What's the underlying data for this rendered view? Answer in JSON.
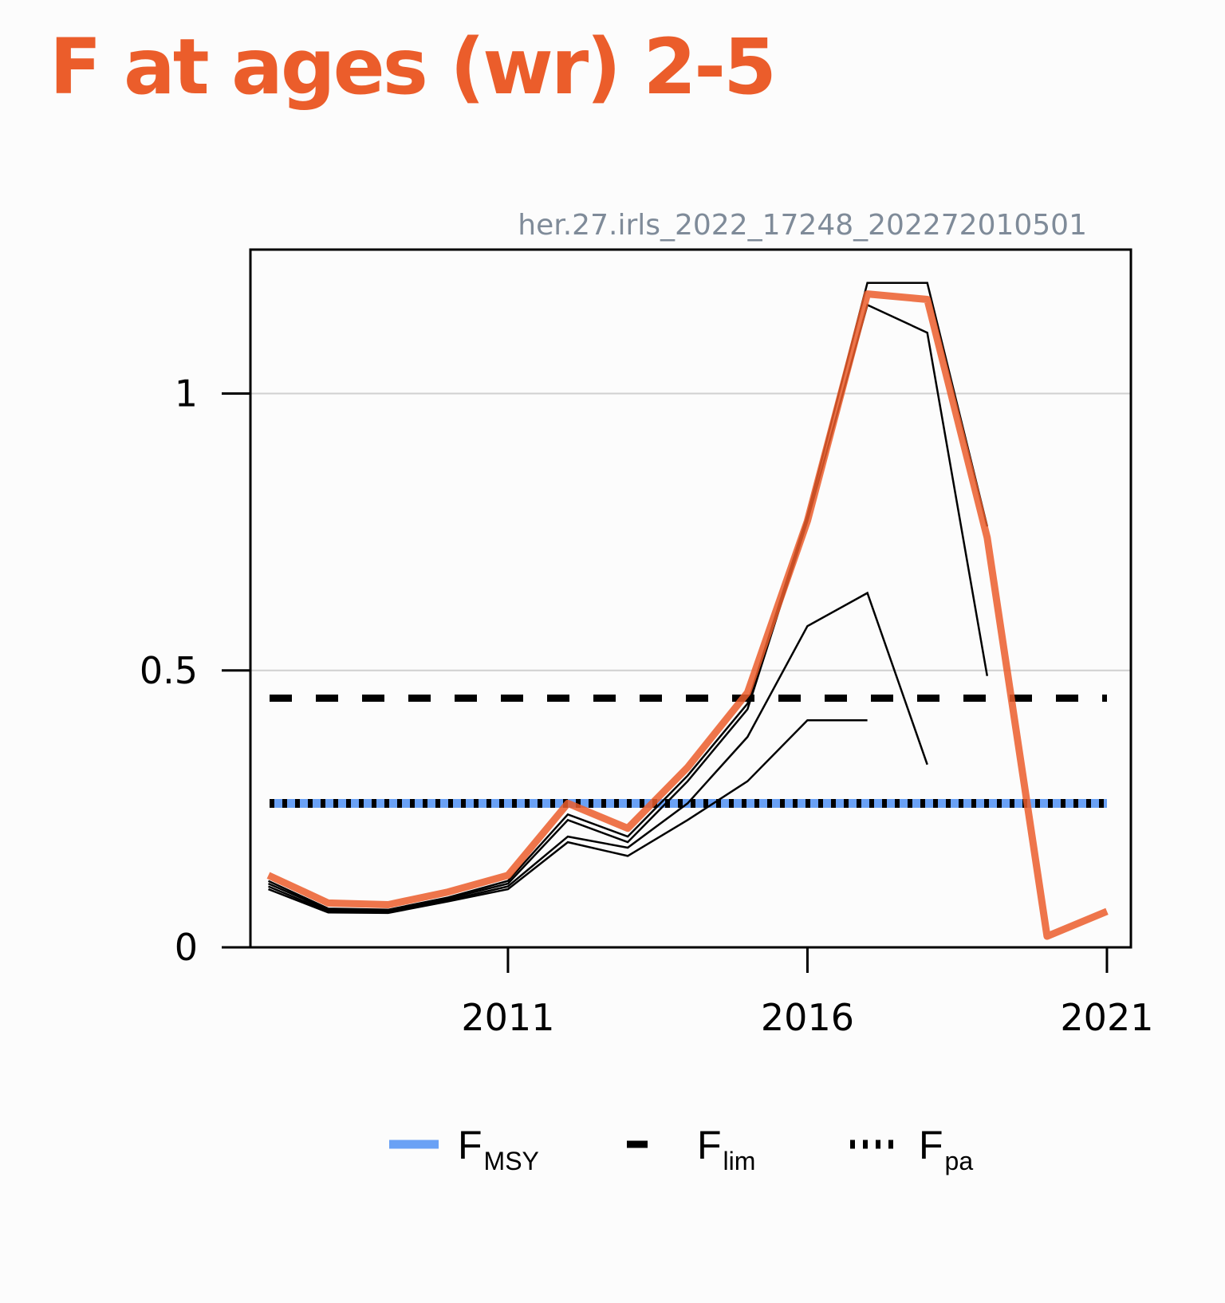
{
  "title": "F at ages (wr) 2-5",
  "source_label": "her.27.irls_2022_17248_202272010501",
  "colors": {
    "title": "#eb5d2b",
    "main_series": "#eb5d2b",
    "fmsy": "#6aa1f5",
    "reference_lines": "#000000",
    "retrospective": "#000000",
    "grid": "#d0d0d0"
  },
  "legend": [
    {
      "main": "F",
      "sub": "MSY",
      "style": "solid",
      "color": "#6aa1f5"
    },
    {
      "main": "F",
      "sub": "lim",
      "style": "dashed",
      "color": "#000000"
    },
    {
      "main": "F",
      "sub": "pa",
      "style": "dotted",
      "color": "#000000"
    }
  ],
  "chart_data": {
    "type": "line",
    "title": "F at ages (wr) 2-5",
    "xlabel": "",
    "ylabel": "",
    "xlim": [
      2006.7,
      2021.4
    ],
    "ylim": [
      0,
      1.26
    ],
    "xticks": [
      2011,
      2016,
      2021
    ],
    "xtick_labels": [
      "2011",
      "2016",
      "2021"
    ],
    "yticks": [
      0,
      0.5,
      1
    ],
    "ytick_labels": [
      "0",
      "0.5",
      "1"
    ],
    "grid": "horizontal",
    "legend_position": "bottom",
    "reference_lines": {
      "F_MSY": 0.26,
      "F_lim": 0.45,
      "F_pa": 0.26
    },
    "series": [
      {
        "role": "main",
        "x": [
          2007,
          2008,
          2009,
          2010,
          2011,
          2012,
          2013,
          2014,
          2015,
          2016,
          2017,
          2018,
          2019,
          2020,
          2021
        ],
        "values": [
          0.13,
          0.08,
          0.077,
          0.1,
          0.13,
          0.26,
          0.215,
          0.325,
          0.46,
          0.77,
          1.18,
          1.17,
          0.74,
          0.02,
          0.065
        ]
      },
      {
        "role": "retrospective",
        "x": [
          2007,
          2008,
          2009,
          2010,
          2011,
          2012,
          2013,
          2014,
          2015,
          2016,
          2017,
          2018,
          2019
        ],
        "values": [
          0.12,
          0.07,
          0.068,
          0.09,
          0.12,
          0.24,
          0.2,
          0.31,
          0.44,
          0.78,
          1.2,
          1.2,
          0.76
        ]
      },
      {
        "role": "retrospective",
        "x": [
          2007,
          2008,
          2009,
          2010,
          2011,
          2012,
          2013,
          2014,
          2015,
          2016,
          2017,
          2018,
          2019
        ],
        "values": [
          0.115,
          0.068,
          0.066,
          0.088,
          0.115,
          0.23,
          0.19,
          0.3,
          0.43,
          0.77,
          1.16,
          1.11,
          0.49
        ]
      },
      {
        "role": "retrospective",
        "x": [
          2007,
          2008,
          2009,
          2010,
          2011,
          2012,
          2013,
          2014,
          2015,
          2016,
          2017,
          2018
        ],
        "values": [
          0.11,
          0.065,
          0.063,
          0.085,
          0.11,
          0.2,
          0.18,
          0.26,
          0.38,
          0.58,
          0.64,
          0.33
        ]
      },
      {
        "role": "retrospective",
        "x": [
          2007,
          2008,
          2009,
          2010,
          2011,
          2012,
          2013,
          2014,
          2015,
          2016,
          2017
        ],
        "values": [
          0.105,
          0.063,
          0.062,
          0.083,
          0.105,
          0.19,
          0.165,
          0.23,
          0.3,
          0.41,
          0.41
        ]
      }
    ]
  }
}
